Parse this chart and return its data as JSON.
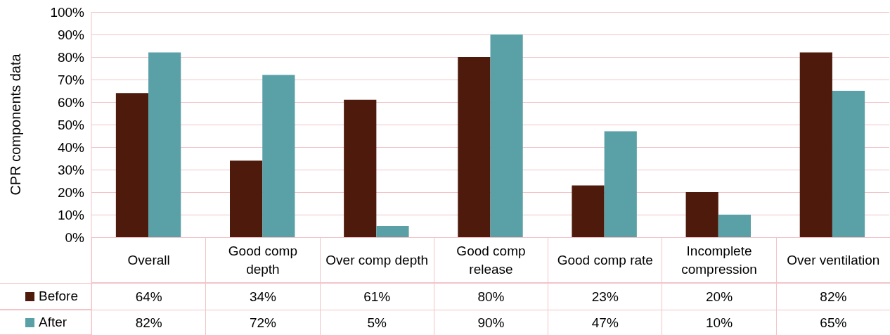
{
  "chart_data": {
    "type": "bar",
    "ylabel": "CPR components data",
    "categories": [
      "Overall",
      "Good comp depth",
      "Over comp depth",
      "Good comp release",
      "Good comp rate",
      "Incomplete compression",
      "Over ventilation"
    ],
    "series": [
      {
        "name": "Before",
        "color": "#4e1a0c",
        "values": [
          64,
          34,
          61,
          80,
          23,
          20,
          82
        ],
        "value_labels": [
          "64%",
          "34%",
          "61%",
          "80%",
          "23%",
          "20%",
          "82%"
        ]
      },
      {
        "name": "After",
        "color": "#5aa0a7",
        "values": [
          82,
          72,
          5,
          90,
          47,
          10,
          65
        ],
        "value_labels": [
          "82%",
          "72%",
          "5%",
          "90%",
          "47%",
          "10%",
          "65%"
        ]
      }
    ],
    "ylim": [
      0,
      100
    ],
    "yticks": [
      {
        "value": 0,
        "label": "0%"
      },
      {
        "value": 10,
        "label": "10%"
      },
      {
        "value": 20,
        "label": "20%"
      },
      {
        "value": 30,
        "label": "30%"
      },
      {
        "value": 40,
        "label": "40%"
      },
      {
        "value": 50,
        "label": "50%"
      },
      {
        "value": 60,
        "label": "60%"
      },
      {
        "value": 70,
        "label": "70%"
      },
      {
        "value": 80,
        "label": "80%"
      },
      {
        "value": 90,
        "label": "90%"
      },
      {
        "value": 100,
        "label": "100%"
      }
    ],
    "grid": "y",
    "legend": "bottom"
  }
}
